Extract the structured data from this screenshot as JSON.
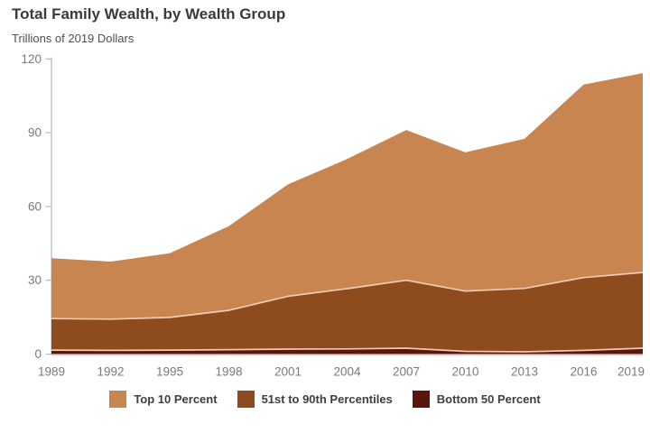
{
  "title": "Total Family Wealth, by Wealth Group",
  "subtitle": "Trillions of 2019 Dollars",
  "theme": {
    "background": "#ffffff",
    "axis_color": "#b8b8b8",
    "tick_label_color": "#7a7a7a",
    "title_color": "#3a3a3a",
    "subtitle_color": "#4e4e4e",
    "legend_text_color": "#3e3e3e",
    "separator_color": "#efcbb3"
  },
  "chart_data": {
    "type": "area",
    "stacked": true,
    "title": "Total Family Wealth, by Wealth Group",
    "subtitle": "Trillions of 2019 Dollars",
    "xlabel": "",
    "ylabel": "Trillions of 2019 Dollars",
    "grid": false,
    "legend_position": "bottom",
    "x": [
      1989,
      1992,
      1995,
      1998,
      2001,
      2004,
      2007,
      2010,
      2013,
      2016,
      2019
    ],
    "x_tick_labels": [
      "1989",
      "1992",
      "1995",
      "1998",
      "2001",
      "2004",
      "2007",
      "2010",
      "2013",
      "2016",
      "2019"
    ],
    "y_ticks": [
      0,
      30,
      60,
      90,
      120
    ],
    "y_tick_labels": [
      "0",
      "30",
      "60",
      "90",
      "120"
    ],
    "ylim": [
      0,
      120
    ],
    "xlim": [
      1989,
      2019
    ],
    "series": [
      {
        "name": "Bottom 50 Percent",
        "color": "#5a150d",
        "values": [
          1.6,
          1.5,
          1.6,
          1.8,
          2.0,
          2.1,
          2.4,
          1.1,
          0.9,
          1.5,
          2.4
        ]
      },
      {
        "name": "51st to 90th Percentiles",
        "color": "#8e4b1e",
        "values": [
          12.8,
          12.7,
          13.3,
          16.0,
          21.5,
          24.5,
          27.6,
          24.5,
          25.8,
          29.6,
          30.8
        ]
      },
      {
        "name": "Top 10 Percent",
        "color": "#c98550",
        "values": [
          24.6,
          23.4,
          26.1,
          34.2,
          45.5,
          52.7,
          61.1,
          56.4,
          60.8,
          78.5,
          81.0
        ]
      }
    ],
    "stacked_totals": [
      39.0,
      37.6,
      41.0,
      52.0,
      69.0,
      79.3,
      91.1,
      82.0,
      87.5,
      109.6,
      114.2
    ]
  },
  "legend": {
    "items": [
      {
        "label": "Top 10 Percent",
        "color": "#c98550"
      },
      {
        "label": "51st to 90th Percentiles",
        "color": "#8e4b1e"
      },
      {
        "label": "Bottom 50 Percent",
        "color": "#5a150d"
      }
    ]
  }
}
